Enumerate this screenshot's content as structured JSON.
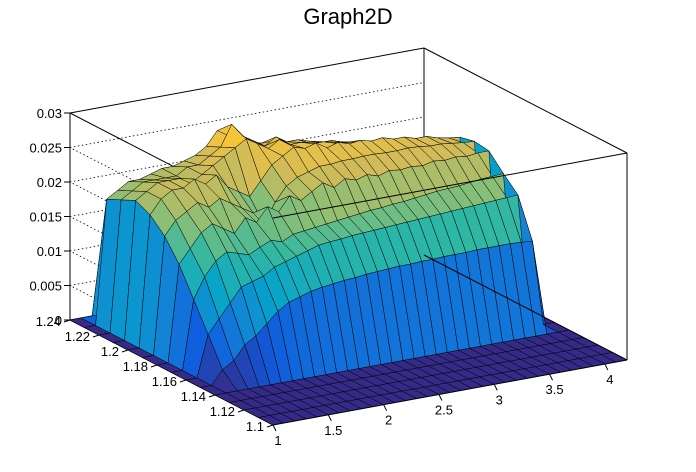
{
  "chart_data": {
    "type": "surface",
    "title": "Graph2D",
    "x_axis": {
      "range": [
        1,
        4.2
      ],
      "ticks": [
        "1",
        "1.5",
        "2",
        "2.5",
        "3",
        "3.5",
        "4"
      ]
    },
    "y_axis": {
      "range": [
        1.1,
        1.24
      ],
      "ticks": [
        "1.1",
        "1.12",
        "1.14",
        "1.16",
        "1.18",
        "1.2",
        "1.22",
        "1.24"
      ]
    },
    "z_axis": {
      "range": [
        0,
        0.03
      ],
      "ticks": [
        "0",
        "0.005",
        "0.01",
        "0.015",
        "0.02",
        "0.025",
        "0.03"
      ]
    },
    "grid": true,
    "colormap": "parula",
    "colors": [
      "#352a87",
      "#0f5cdd",
      "#1481d6",
      "#06a4ca",
      "#2eb7a4",
      "#87bf77",
      "#d1bb59",
      "#fec832",
      "#f9fb0e"
    ],
    "surface": {
      "x_start": 1.0,
      "x_end": 4.2,
      "nx": 33,
      "y_start": 1.1,
      "y_end": 1.24,
      "ny": 15,
      "z_rows": [
        [
          0.0,
          0.0,
          0.0,
          0.0,
          0.0,
          0.0,
          0.0,
          0.0,
          0.0,
          0.0,
          0.0,
          0.0,
          0.0,
          0.0,
          0.0,
          0.0,
          0.0,
          0.0,
          0.0,
          0.0,
          0.0,
          0.0,
          0.0,
          0.0,
          0.0,
          0.0,
          0.0,
          0.0,
          0.0,
          0.0,
          0.0,
          0.0,
          0.0
        ],
        [
          0.0,
          0.0,
          0.0,
          0.0,
          0.0,
          0.0,
          0.0,
          0.0,
          0.0,
          0.0,
          0.0,
          0.0,
          0.0,
          0.0,
          0.0,
          0.0,
          0.0,
          0.0,
          0.0,
          0.0,
          0.0,
          0.0,
          0.0,
          0.0,
          0.0,
          0.0,
          0.0,
          0.0,
          0.0,
          0.0,
          0.0,
          0.0,
          0.0
        ],
        [
          0.0,
          0.0,
          0.0,
          0.0,
          0.0,
          0.0,
          0.0,
          0.0,
          0.0,
          0.0,
          0.0,
          0.0,
          0.0,
          0.0,
          0.0,
          0.0,
          0.0,
          0.0,
          0.0,
          0.0,
          0.0,
          0.0,
          0.0,
          0.0,
          0.0,
          0.0,
          0.0,
          0.0,
          0.0,
          0.0,
          0.0,
          0.0,
          0.0
        ],
        [
          0.0,
          0.0,
          0.0,
          0.0,
          0.0,
          0.0,
          0.0,
          0.0,
          0.0,
          0.0,
          0.0,
          0.0,
          0.0,
          0.0,
          0.0,
          0.0,
          0.0,
          0.0,
          0.0,
          0.0,
          0.0,
          0.0,
          0.0,
          0.0,
          0.0,
          0.0,
          0.0,
          0.0,
          0.0,
          0.0,
          0.0,
          0.0,
          0.0
        ],
        [
          0.0,
          0.0,
          0.0,
          0.0,
          0.0,
          0.0,
          0.0,
          0.0,
          0.0,
          0.0,
          0.0,
          0.0,
          0.0,
          0.0,
          0.0,
          0.0,
          0.0,
          0.0,
          0.0,
          0.0,
          0.0,
          0.0,
          0.0,
          0.0,
          0.0,
          0.0,
          0.0,
          0.0,
          0.0,
          0.0,
          0.0,
          0.0,
          0.0
        ],
        [
          0.0,
          0.0,
          0.002,
          0.003,
          0.005,
          0.006,
          0.0075,
          0.009,
          0.01,
          0.0105,
          0.011,
          0.0113,
          0.0115,
          0.0117,
          0.0118,
          0.012,
          0.0121,
          0.0122,
          0.0123,
          0.0123,
          0.0124,
          0.0124,
          0.0125,
          0.0125,
          0.0125,
          0.0126,
          0.0126,
          0.0126,
          0.0126,
          0.0125,
          0.0124,
          0.0,
          0.0
        ],
        [
          0.0,
          0.0,
          0.006,
          0.008,
          0.01,
          0.012,
          0.0125,
          0.013,
          0.014,
          0.0145,
          0.015,
          0.0155,
          0.016,
          0.0162,
          0.0163,
          0.0165,
          0.0166,
          0.0167,
          0.0168,
          0.0169,
          0.017,
          0.0171,
          0.0172,
          0.0173,
          0.0174,
          0.0175,
          0.0176,
          0.0177,
          0.0178,
          0.0179,
          0.018,
          0.0,
          0.0
        ],
        [
          0.0,
          0.0,
          0.01,
          0.013,
          0.015,
          0.016,
          0.0155,
          0.015,
          0.0158,
          0.0165,
          0.016,
          0.0168,
          0.017,
          0.0172,
          0.0174,
          0.0176,
          0.0178,
          0.018,
          0.0182,
          0.0183,
          0.0185,
          0.0186,
          0.0188,
          0.019,
          0.0192,
          0.0193,
          0.0194,
          0.0196,
          0.0198,
          0.0199,
          0.02,
          0.0,
          0.0
        ],
        [
          0.0,
          0.0,
          0.014,
          0.016,
          0.018,
          0.019,
          0.018,
          0.017,
          0.019,
          0.018,
          0.02,
          0.019,
          0.021,
          0.02,
          0.021,
          0.022,
          0.021,
          0.022,
          0.0215,
          0.022,
          0.0215,
          0.022,
          0.0218,
          0.022,
          0.0218,
          0.0222,
          0.022,
          0.0222,
          0.022,
          0.0222,
          0.0222,
          0.0,
          0.0
        ],
        [
          0.0,
          0.0,
          0.017,
          0.019,
          0.02,
          0.021,
          0.02,
          0.021,
          0.02,
          0.019,
          0.018,
          0.016,
          0.019,
          0.021,
          0.022,
          0.0225,
          0.023,
          0.023,
          0.0232,
          0.0232,
          0.0233,
          0.0233,
          0.0232,
          0.0232,
          0.0233,
          0.0232,
          0.023,
          0.023,
          0.0228,
          0.0226,
          0.0225,
          0.0,
          0.0
        ],
        [
          0.0,
          0.0,
          0.019,
          0.021,
          0.022,
          0.022,
          0.023,
          0.022,
          0.023,
          0.021,
          0.02,
          0.019,
          0.021,
          0.023,
          0.024,
          0.025,
          0.0245,
          0.025,
          0.024,
          0.0245,
          0.024,
          0.0242,
          0.0238,
          0.024,
          0.0235,
          0.0235,
          0.023,
          0.023,
          0.0225,
          0.0222,
          0.022,
          0.0,
          0.0
        ],
        [
          0.0,
          0.0,
          0.02,
          0.021,
          0.022,
          0.022,
          0.022,
          0.021,
          0.022,
          0.023,
          0.024,
          0.025,
          0.026,
          0.025,
          0.024,
          0.025,
          0.024,
          0.024,
          0.0235,
          0.0235,
          0.023,
          0.0228,
          0.0226,
          0.0222,
          0.022,
          0.0218,
          0.0215,
          0.0212,
          0.021,
          0.0208,
          0.0205,
          0.0,
          0.0
        ],
        [
          0.0,
          0.0,
          0.019,
          0.02,
          0.021,
          0.021,
          0.021,
          0.021,
          0.022,
          0.022,
          0.023,
          0.024,
          0.027,
          0.025,
          0.024,
          0.023,
          0.024,
          0.023,
          0.023,
          0.0225,
          0.022,
          0.022,
          0.0215,
          0.021,
          0.0208,
          0.0205,
          0.0203,
          0.02,
          0.0198,
          0.0195,
          0.0192,
          0.0,
          0.0
        ],
        [
          0.0,
          0.0,
          0.018,
          0.019,
          0.02,
          0.02,
          0.0205,
          0.021,
          0.021,
          0.0215,
          0.022,
          0.023,
          0.025,
          0.024,
          0.023,
          0.0225,
          0.022,
          0.022,
          0.0215,
          0.021,
          0.0208,
          0.0205,
          0.0202,
          0.02,
          0.0198,
          0.0195,
          0.0192,
          0.019,
          0.0188,
          0.0186,
          0.0185,
          0.0,
          0.0
        ],
        [
          0.0,
          0.0,
          0.0,
          0.0,
          0.0,
          0.0,
          0.0,
          0.0,
          0.0,
          0.0,
          0.0,
          0.0,
          0.0,
          0.0,
          0.0,
          0.0,
          0.0,
          0.0,
          0.0,
          0.0,
          0.0,
          0.0,
          0.0,
          0.0,
          0.0,
          0.0,
          0.0,
          0.0,
          0.0,
          0.0,
          0.0,
          0.0,
          0.0
        ]
      ]
    }
  }
}
